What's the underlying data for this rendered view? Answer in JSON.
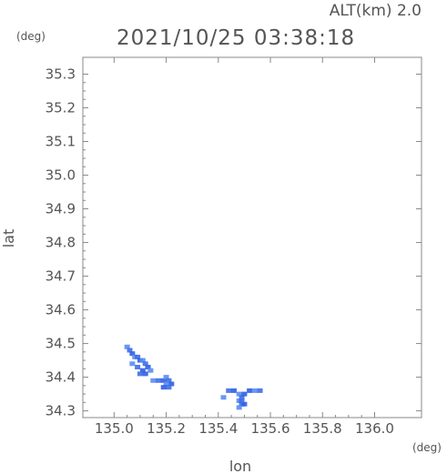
{
  "chart_data": {
    "type": "scatter",
    "title": "2021/10/25 03:38:18",
    "subtitle": "ALT(km) 2.0",
    "xlabel": "lon",
    "ylabel": "lat",
    "x_unit": "(deg)",
    "y_unit": "(deg)",
    "xlim": [
      134.88,
      136.18
    ],
    "ylim": [
      34.28,
      35.35
    ],
    "x_ticks": [
      135.0,
      135.2,
      135.4,
      135.6,
      135.8,
      136.0
    ],
    "x_tick_labels": [
      "135.0",
      "135.2",
      "135.4",
      "135.6",
      "135.8",
      "136.0"
    ],
    "y_ticks": [
      34.3,
      34.4,
      34.5,
      34.6,
      34.7,
      34.8,
      34.9,
      35.0,
      35.1,
      35.2,
      35.3
    ],
    "y_tick_labels": [
      "34.3",
      "34.4",
      "34.5",
      "34.6",
      "34.7",
      "34.8",
      "34.9",
      "35.0",
      "35.1",
      "35.2",
      "35.3"
    ],
    "grid": false,
    "colors": {
      "echo_light": "#5b8cf0",
      "echo_mid": "#3e6ee8",
      "echo_strong": "#2f5ee3",
      "echo_core": "#7fa8f5",
      "axis": "#888888"
    },
    "series": [
      {
        "points": [
          {
            "x": 135.05,
            "y": 34.49
          },
          {
            "x": 135.06,
            "y": 34.48
          },
          {
            "x": 135.07,
            "y": 34.47
          },
          {
            "x": 135.08,
            "y": 34.46
          },
          {
            "x": 135.09,
            "y": 34.46
          },
          {
            "x": 135.1,
            "y": 34.45
          },
          {
            "x": 135.11,
            "y": 34.45
          },
          {
            "x": 135.12,
            "y": 34.44
          },
          {
            "x": 135.13,
            "y": 34.43
          },
          {
            "x": 135.14,
            "y": 34.42
          },
          {
            "x": 135.09,
            "y": 34.43
          },
          {
            "x": 135.11,
            "y": 34.42
          },
          {
            "x": 135.07,
            "y": 34.44
          },
          {
            "x": 135.1,
            "y": 34.41
          },
          {
            "x": 135.12,
            "y": 34.41
          },
          {
            "x": 135.15,
            "y": 34.39
          },
          {
            "x": 135.17,
            "y": 34.39
          },
          {
            "x": 135.19,
            "y": 34.39
          },
          {
            "x": 135.2,
            "y": 34.4
          },
          {
            "x": 135.21,
            "y": 34.39
          },
          {
            "x": 135.22,
            "y": 34.38
          },
          {
            "x": 135.2,
            "y": 34.38
          },
          {
            "x": 135.21,
            "y": 34.37
          },
          {
            "x": 135.19,
            "y": 34.37
          },
          {
            "x": 135.42,
            "y": 34.34
          },
          {
            "x": 135.44,
            "y": 34.36
          },
          {
            "x": 135.46,
            "y": 34.36
          },
          {
            "x": 135.48,
            "y": 34.35
          },
          {
            "x": 135.49,
            "y": 34.34
          },
          {
            "x": 135.5,
            "y": 34.35
          },
          {
            "x": 135.48,
            "y": 34.33
          },
          {
            "x": 135.49,
            "y": 34.32
          },
          {
            "x": 135.5,
            "y": 34.32
          },
          {
            "x": 135.48,
            "y": 34.31
          },
          {
            "x": 135.49,
            "y": 34.33
          },
          {
            "x": 135.52,
            "y": 34.36
          },
          {
            "x": 135.54,
            "y": 34.36
          },
          {
            "x": 135.56,
            "y": 34.36
          }
        ]
      }
    ]
  }
}
